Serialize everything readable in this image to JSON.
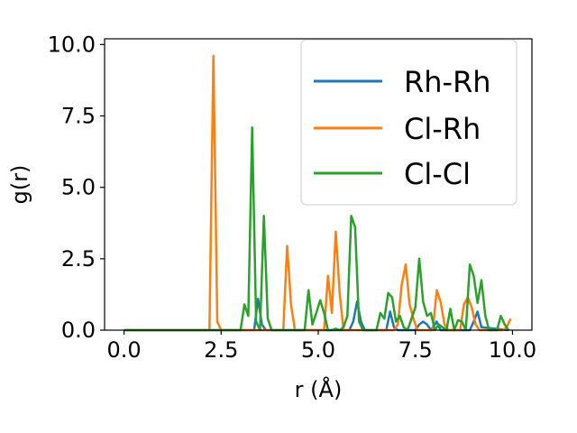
{
  "chart_data": {
    "type": "line",
    "xlabel": "r (Å)",
    "ylabel": "g(r)",
    "xlim": [
      -0.5,
      10.5
    ],
    "ylim": [
      0,
      10.2
    ],
    "xticks": [
      0.0,
      2.5,
      5.0,
      7.5,
      10.0
    ],
    "xtick_labels": [
      "0.0",
      "2.5",
      "5.0",
      "7.5",
      "10.0"
    ],
    "yticks": [
      0.0,
      2.5,
      5.0,
      7.5,
      10.0
    ],
    "ytick_labels": [
      "0.0",
      "2.5",
      "5.0",
      "7.5",
      "10.0"
    ],
    "grid": false,
    "legend_position": "top-right",
    "series": [
      {
        "name": "Rh-Rh",
        "color": "#1f77b4",
        "x": [
          0.0,
          3.35,
          3.45,
          3.55,
          3.65,
          5.8,
          5.9,
          6.0,
          6.1,
          6.2,
          6.75,
          6.85,
          6.95,
          7.05,
          7.5,
          7.6,
          7.7,
          7.8,
          7.9,
          8.05,
          8.15,
          8.9,
          9.0,
          9.1,
          9.2,
          9.9
        ],
        "y": [
          0.0,
          0.0,
          1.1,
          0.2,
          0.0,
          0.0,
          0.3,
          1.0,
          0.3,
          0.0,
          0.0,
          0.65,
          0.1,
          0.0,
          0.0,
          0.2,
          0.3,
          0.2,
          0.0,
          0.3,
          0.0,
          0.0,
          0.3,
          0.65,
          0.1,
          0.0
        ]
      },
      {
        "name": "Cl-Rh",
        "color": "#ff7f0e",
        "x": [
          0.0,
          2.2,
          2.3,
          2.4,
          2.5,
          4.1,
          4.2,
          4.3,
          4.4,
          5.15,
          5.25,
          5.35,
          5.45,
          5.55,
          5.65,
          6.95,
          7.05,
          7.15,
          7.25,
          7.35,
          7.45,
          7.55,
          7.65,
          7.95,
          8.05,
          8.15,
          8.25,
          8.35,
          8.65,
          8.75,
          8.85,
          8.95,
          9.05,
          9.15,
          9.75,
          9.85,
          9.95
        ],
        "y": [
          0.0,
          0.0,
          9.6,
          0.3,
          0.0,
          0.0,
          2.95,
          0.9,
          0.0,
          0.0,
          1.9,
          0.6,
          3.45,
          1.3,
          0.0,
          0.0,
          0.2,
          1.6,
          2.3,
          0.9,
          0.4,
          0.0,
          0.0,
          0.0,
          1.4,
          1.0,
          0.2,
          0.0,
          0.0,
          0.9,
          1.15,
          0.8,
          0.2,
          0.0,
          0.0,
          0.1,
          0.4
        ]
      },
      {
        "name": "Cl-Cl",
        "color": "#2ca02c",
        "x": [
          0.0,
          3.0,
          3.1,
          3.2,
          3.3,
          3.4,
          3.5,
          3.6,
          3.7,
          3.8,
          4.65,
          4.75,
          4.85,
          4.95,
          5.05,
          5.15,
          5.25,
          5.35,
          5.45,
          5.55,
          5.65,
          5.75,
          5.85,
          5.95,
          6.05,
          6.15,
          6.5,
          6.6,
          6.7,
          6.8,
          6.9,
          7.0,
          7.1,
          7.2,
          7.3,
          7.4,
          7.5,
          7.6,
          7.7,
          7.8,
          7.9,
          8.0,
          8.1,
          8.2,
          8.3,
          8.4,
          8.5,
          8.6,
          8.7,
          8.8,
          8.9,
          9.0,
          9.1,
          9.2,
          9.3,
          9.4,
          9.5,
          9.6,
          9.7,
          9.8,
          9.9
        ],
        "y": [
          0.0,
          0.0,
          0.9,
          0.5,
          7.1,
          0.3,
          0.0,
          4.0,
          0.4,
          0.0,
          0.0,
          1.4,
          0.2,
          0.6,
          1.05,
          0.6,
          0.0,
          0.0,
          0.05,
          0.0,
          0.1,
          0.5,
          4.0,
          3.6,
          0.3,
          0.0,
          0.0,
          0.6,
          0.4,
          1.3,
          1.15,
          0.3,
          0.5,
          0.1,
          0.0,
          0.4,
          0.8,
          2.5,
          1.0,
          0.5,
          0.6,
          0.0,
          0.2,
          0.1,
          0.0,
          0.75,
          0.0,
          0.35,
          0.3,
          0.0,
          2.3,
          1.9,
          0.95,
          1.75,
          0.5,
          0.0,
          0.0,
          0.0,
          0.5,
          0.2,
          0.0
        ]
      }
    ]
  }
}
